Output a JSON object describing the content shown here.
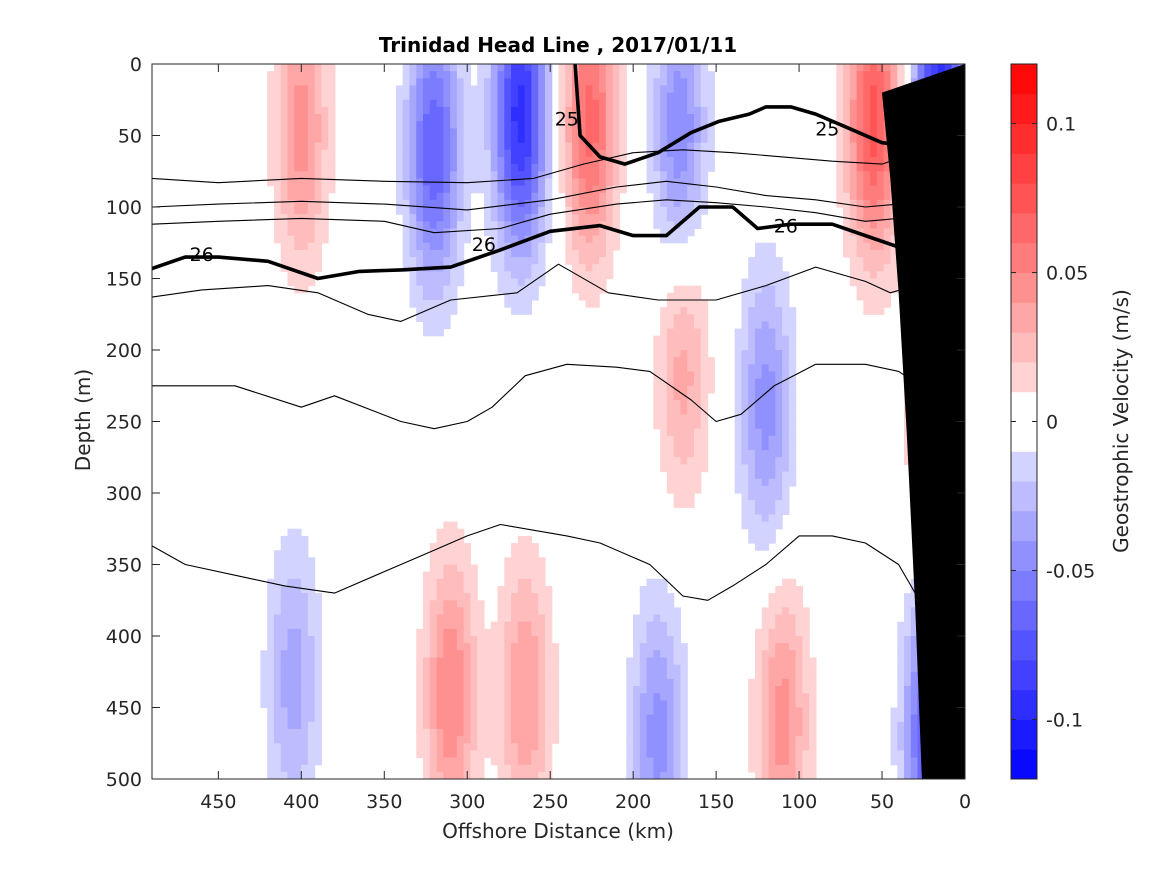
{
  "chart_data": {
    "type": "heatmap",
    "title": "Trinidad Head Line , 2017/01/11",
    "xlabel": "Offshore Distance (km)",
    "ylabel": "Depth (m)",
    "colorbar_label": "Geostrophic Velocity (m/s)",
    "xlim": [
      490,
      0
    ],
    "x_reversed": true,
    "ylim": [
      500,
      0
    ],
    "y_reversed": true,
    "x_ticks": [
      450,
      400,
      350,
      300,
      250,
      200,
      150,
      100,
      50,
      0
    ],
    "y_ticks": [
      0,
      50,
      100,
      150,
      200,
      250,
      300,
      350,
      400,
      450,
      500
    ],
    "colorbar": {
      "range": [
        -0.12,
        0.12
      ],
      "levels": 24,
      "ticks": [
        0.1,
        0.05,
        0,
        -0.05,
        -0.1
      ],
      "tick_labels": [
        "0.1",
        "0.05",
        "0",
        "-0.05",
        "-0.1"
      ],
      "positive_color": "#ff0000",
      "negative_color": "#0000ff",
      "zero_color": "#ffffff"
    },
    "velocity_cores": [
      {
        "x": 400,
        "z": 45,
        "value": 0.045
      },
      {
        "x": 320,
        "z": 60,
        "value": -0.07
      },
      {
        "x": 268,
        "z": 35,
        "value": -0.095
      },
      {
        "x": 226,
        "z": 40,
        "value": 0.065
      },
      {
        "x": 172,
        "z": 50,
        "value": -0.05
      },
      {
        "x": 170,
        "z": 210,
        "value": 0.035
      },
      {
        "x": 120,
        "z": 240,
        "value": -0.045
      },
      {
        "x": 55,
        "z": 40,
        "value": 0.075
      },
      {
        "x": 15,
        "z": 30,
        "value": -0.1
      },
      {
        "x": 15,
        "z": 220,
        "value": 0.07
      },
      {
        "x": 310,
        "z": 440,
        "value": 0.05
      },
      {
        "x": 265,
        "z": 440,
        "value": 0.04
      },
      {
        "x": 405,
        "z": 430,
        "value": -0.035
      },
      {
        "x": 185,
        "z": 470,
        "value": -0.045
      },
      {
        "x": 110,
        "z": 460,
        "value": 0.045
      },
      {
        "x": 20,
        "z": 470,
        "value": -0.08
      }
    ],
    "isopycnals": [
      {
        "level": "25",
        "bold": true,
        "label_positions": [
          [
            240,
            38
          ],
          [
            83,
            45
          ]
        ],
        "x": [
          235,
          232,
          220,
          205,
          185,
          165,
          148,
          130,
          120,
          105,
          90,
          70,
          50,
          30,
          10,
          0
        ],
        "z": [
          0,
          50,
          65,
          70,
          62,
          48,
          40,
          35,
          30,
          30,
          35,
          45,
          55,
          58,
          50,
          25
        ]
      },
      {
        "level": "26",
        "bold": true,
        "label_positions": [
          [
            460,
            133
          ],
          [
            290,
            126
          ],
          [
            108,
            113
          ]
        ],
        "x": [
          490,
          470,
          450,
          420,
          390,
          365,
          340,
          310,
          280,
          250,
          220,
          200,
          180,
          160,
          140,
          125,
          105,
          80,
          55,
          40,
          20,
          0
        ],
        "z": [
          143,
          135,
          135,
          138,
          150,
          145,
          144,
          142,
          130,
          117,
          113,
          120,
          120,
          100,
          100,
          115,
          112,
          112,
          122,
          128,
          120,
          100
        ]
      },
      {
        "level": "",
        "bold": false,
        "label_positions": [],
        "x": [
          490,
          450,
          400,
          350,
          300,
          260,
          230,
          200,
          170,
          140,
          110,
          80,
          50,
          30,
          0
        ],
        "z": [
          80,
          83,
          80,
          82,
          83,
          80,
          70,
          62,
          60,
          62,
          65,
          68,
          70,
          62,
          45
        ]
      },
      {
        "level": "",
        "bold": false,
        "label_positions": [],
        "x": [
          490,
          450,
          400,
          350,
          300,
          250,
          210,
          180,
          150,
          120,
          90,
          60,
          40,
          20,
          0
        ],
        "z": [
          100,
          98,
          96,
          98,
          102,
          95,
          86,
          82,
          86,
          92,
          95,
          100,
          98,
          92,
          80
        ]
      },
      {
        "level": "",
        "bold": false,
        "label_positions": [],
        "x": [
          490,
          450,
          400,
          350,
          320,
          280,
          250,
          210,
          180,
          150,
          120,
          90,
          60,
          40,
          20,
          0
        ],
        "z": [
          112,
          110,
          108,
          110,
          118,
          115,
          105,
          98,
          95,
          97,
          100,
          104,
          110,
          108,
          102,
          85
        ]
      },
      {
        "level": "",
        "bold": false,
        "label_positions": [],
        "x": [
          490,
          460,
          420,
          390,
          360,
          340,
          310,
          270,
          245,
          215,
          185,
          150,
          120,
          90,
          60,
          45,
          30,
          0
        ],
        "z": [
          163,
          158,
          155,
          160,
          175,
          180,
          165,
          160,
          140,
          160,
          165,
          165,
          155,
          142,
          152,
          160,
          155,
          130
        ]
      },
      {
        "level": "",
        "bold": false,
        "label_positions": [],
        "x": [
          490,
          440,
          400,
          380,
          340,
          320,
          300,
          285,
          265,
          240,
          210,
          190,
          165,
          150,
          135,
          115,
          90,
          60,
          40,
          20,
          0
        ],
        "z": [
          225,
          225,
          240,
          232,
          250,
          255,
          250,
          240,
          218,
          210,
          212,
          215,
          235,
          250,
          245,
          225,
          210,
          210,
          215,
          230,
          270
        ]
      },
      {
        "level": "",
        "bold": false,
        "label_positions": [],
        "x": [
          490,
          470,
          430,
          410,
          380,
          350,
          320,
          300,
          280,
          240,
          220,
          190,
          170,
          155,
          140,
          120,
          100,
          80,
          60,
          40,
          30
        ],
        "z": [
          337,
          350,
          360,
          365,
          370,
          355,
          340,
          330,
          322,
          330,
          335,
          350,
          372,
          375,
          365,
          350,
          330,
          330,
          335,
          350,
          370
        ]
      }
    ],
    "bathymetry": {
      "color": "#000000",
      "x": [
        0,
        0,
        25,
        35,
        44
      ],
      "z": [
        0,
        500,
        500,
        0,
        0
      ],
      "edge_x": [
        26,
        30,
        35,
        40,
        45,
        50
      ],
      "edge_z": [
        500,
        380,
        260,
        160,
        80,
        20
      ]
    }
  }
}
